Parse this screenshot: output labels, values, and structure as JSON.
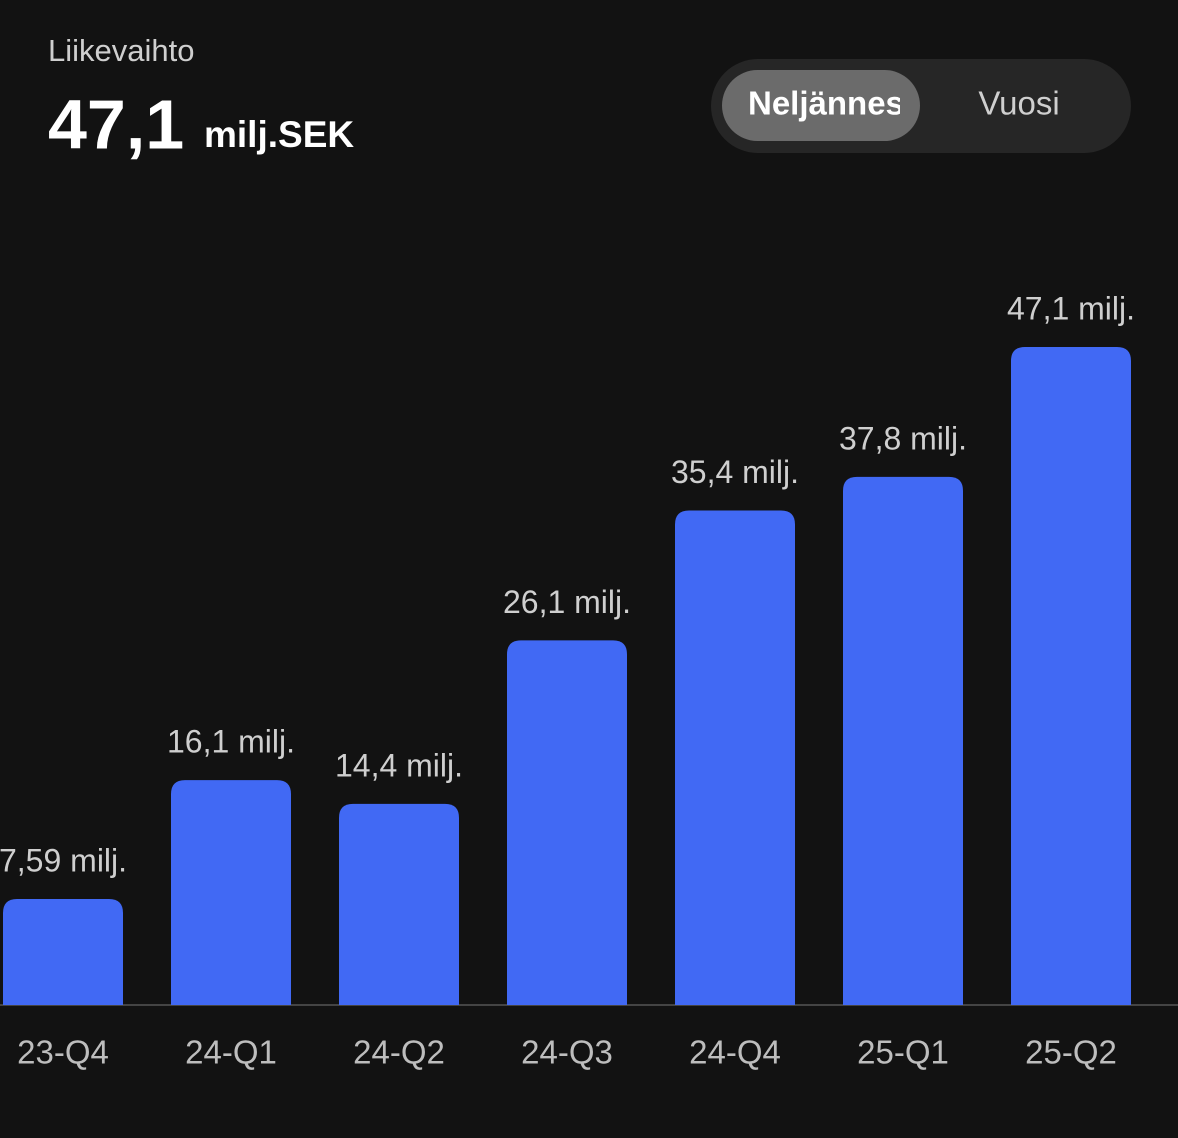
{
  "chart_data": {
    "type": "bar",
    "title": "Liikevaihto",
    "headline": {
      "value": "47,1",
      "unit": "milj.SEK"
    },
    "toggle": {
      "options": [
        "Neljännes",
        "Vuosi"
      ],
      "selected": 0
    },
    "categories": [
      "23-Q4",
      "24-Q1",
      "24-Q2",
      "24-Q3",
      "24-Q4",
      "25-Q1",
      "25-Q2"
    ],
    "values": [
      7.59,
      16.1,
      14.4,
      26.1,
      35.4,
      37.8,
      47.1
    ],
    "value_labels": [
      "7,59 milj.",
      "16,1 milj.",
      "14,4 milj.",
      "26,1 milj.",
      "35,4 milj.",
      "37,8 milj.",
      "47,1 milj."
    ],
    "color": "#4169f4"
  }
}
